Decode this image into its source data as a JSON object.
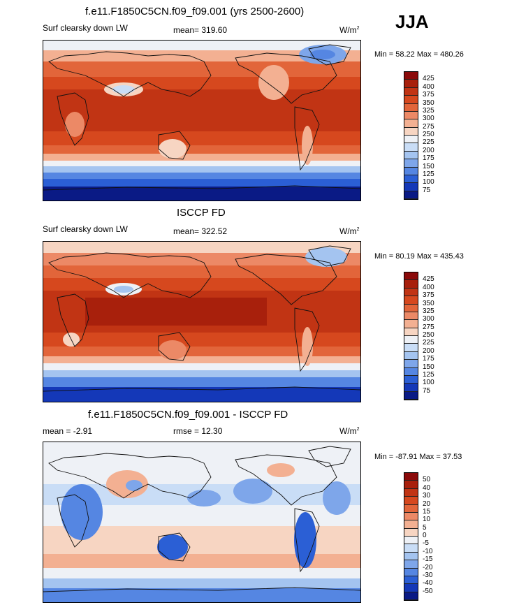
{
  "season": "JJA",
  "panels": [
    {
      "title": "f.e11.F1850C5CN.f09_f09.001 (yrs 2500-2600)",
      "variable": "Surf clearsky down LW",
      "stat": "mean= 319.60",
      "units": "W/m",
      "units_exp": "2",
      "minmax": "Min =  58.22 Max = 480.26",
      "levels": [
        "425",
        "400",
        "375",
        "350",
        "325",
        "300",
        "275",
        "250",
        "225",
        "200",
        "175",
        "150",
        "125",
        "100",
        "75"
      ],
      "colors": [
        "#8b0a0a",
        "#a8200c",
        "#c13414",
        "#d6481e",
        "#e2653a",
        "#ec8966",
        "#f3b092",
        "#f7d5c2",
        "#eef1f6",
        "#c9ddf6",
        "#a4c4f0",
        "#7ea6ea",
        "#5586e2",
        "#2b5fd5",
        "#1438b8",
        "#0a1a85"
      ]
    },
    {
      "title": "ISCCP FD",
      "variable": "Surf clearsky down LW",
      "stat": "mean= 322.52",
      "units": "W/m",
      "units_exp": "2",
      "minmax": "Min =  80.19 Max = 435.43",
      "levels": [
        "425",
        "400",
        "375",
        "350",
        "325",
        "300",
        "275",
        "250",
        "225",
        "200",
        "175",
        "150",
        "125",
        "100",
        "75"
      ],
      "colors": [
        "#8b0a0a",
        "#a8200c",
        "#c13414",
        "#d6481e",
        "#e2653a",
        "#ec8966",
        "#f3b092",
        "#f7d5c2",
        "#eef1f6",
        "#c9ddf6",
        "#a4c4f0",
        "#7ea6ea",
        "#5586e2",
        "#2b5fd5",
        "#1438b8",
        "#0a1a85"
      ]
    },
    {
      "title": "f.e11.F1850C5CN.f09_f09.001 - ISCCP FD",
      "variable": "mean =  -2.91",
      "stat": "rmse =  12.30",
      "units": "W/m",
      "units_exp": "2",
      "minmax": "Min = -87.91 Max =  37.53",
      "levels": [
        "50",
        "40",
        "30",
        "20",
        "15",
        "10",
        "5",
        "0",
        "-5",
        "-10",
        "-15",
        "-20",
        "-30",
        "-40",
        "-50"
      ],
      "colors": [
        "#8b0a0a",
        "#a8200c",
        "#c13414",
        "#d6481e",
        "#e2653a",
        "#ec8966",
        "#f3b092",
        "#f7d5c2",
        "#eef1f6",
        "#c9ddf6",
        "#a4c4f0",
        "#7ea6ea",
        "#5586e2",
        "#2b5fd5",
        "#1438b8",
        "#0a1a85"
      ]
    }
  ]
}
